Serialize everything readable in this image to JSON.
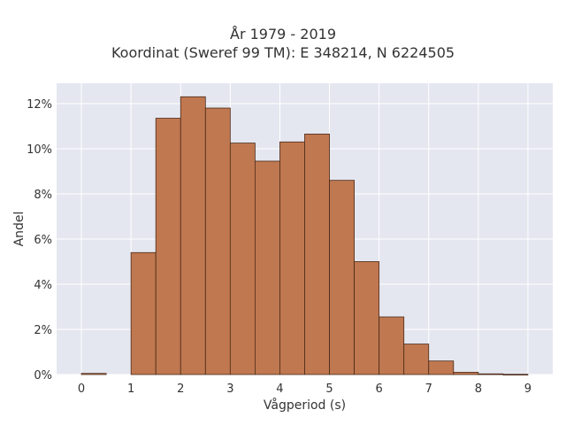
{
  "chart_data": {
    "type": "bar",
    "title_lines": [
      "År 1979 - 2019",
      "Koordinat (Sweref 99 TM): E 348214, N 6224505"
    ],
    "xlabel": "Vågperiod (s)",
    "ylabel": "Andel",
    "xlim": [
      -0.5,
      9.5
    ],
    "ylim": [
      0,
      12.9
    ],
    "xticks": [
      0,
      1,
      2,
      3,
      4,
      5,
      6,
      7,
      8,
      9
    ],
    "yticks": [
      0,
      2,
      4,
      6,
      8,
      10,
      12
    ],
    "ytick_suffix": "%",
    "grid": true,
    "bin_width": 0.5,
    "bins": [
      {
        "x0": 0.0,
        "value": 0.05
      },
      {
        "x0": 0.5,
        "value": 0.0
      },
      {
        "x0": 1.0,
        "value": 5.4
      },
      {
        "x0": 1.5,
        "value": 11.35
      },
      {
        "x0": 2.0,
        "value": 12.3
      },
      {
        "x0": 2.5,
        "value": 11.8
      },
      {
        "x0": 3.0,
        "value": 10.25
      },
      {
        "x0": 3.5,
        "value": 9.45
      },
      {
        "x0": 4.0,
        "value": 10.3
      },
      {
        "x0": 4.5,
        "value": 10.65
      },
      {
        "x0": 5.0,
        "value": 8.6
      },
      {
        "x0": 5.5,
        "value": 5.0
      },
      {
        "x0": 6.0,
        "value": 2.55
      },
      {
        "x0": 6.5,
        "value": 1.35
      },
      {
        "x0": 7.0,
        "value": 0.6
      },
      {
        "x0": 7.5,
        "value": 0.1
      },
      {
        "x0": 8.0,
        "value": 0.03
      },
      {
        "x0": 8.5,
        "value": 0.01
      }
    ],
    "colors": {
      "bar_fill": "#c07850",
      "bar_stroke": "#4a2a18",
      "plot_bg": "#e5e7f0",
      "grid": "#ffffff"
    }
  }
}
